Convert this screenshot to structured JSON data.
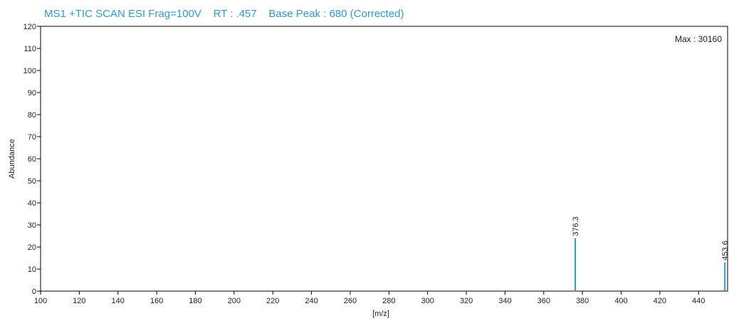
{
  "title": "MS1 +TIC SCAN ESI Frag=100V    RT : .457    Base Peak : 680 (Corrected)",
  "chart_data": {
    "type": "bar",
    "title": "MS1 +TIC SCAN ESI Frag=100V    RT : .457    Base Peak : 680 (Corrected)",
    "annotation": "Max : 30160",
    "xlabel": "[m/z]",
    "ylabel": "Abundance",
    "xlim": [
      100,
      455
    ],
    "ylim": [
      0,
      120
    ],
    "xticks": [
      100,
      120,
      140,
      160,
      180,
      200,
      220,
      240,
      260,
      280,
      300,
      320,
      340,
      360,
      380,
      400,
      420,
      440
    ],
    "yticks": [
      0,
      10,
      20,
      30,
      40,
      50,
      60,
      70,
      80,
      90,
      100,
      110,
      120
    ],
    "grid": false,
    "peaks": [
      {
        "x": 376.3,
        "y": 24,
        "label": "376.3"
      },
      {
        "x": 453.6,
        "y": 13,
        "label": "453.6"
      }
    ],
    "colors": {
      "peak": "#2a9ae0",
      "title": "#2a9ae0",
      "axis": "#000000"
    }
  }
}
